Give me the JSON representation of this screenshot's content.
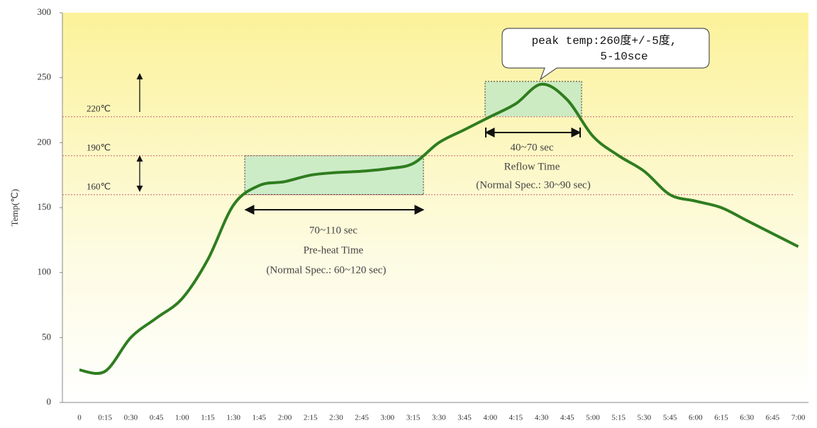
{
  "chart_data": {
    "type": "line",
    "y_label": "Temp(℃)",
    "categories": [
      "0",
      "0:15",
      "0:30",
      "0:45",
      "1:00",
      "1:15",
      "1:30",
      "1:45",
      "2:00",
      "2:15",
      "2:30",
      "2:45",
      "3:00",
      "3:15",
      "3:30",
      "3:45",
      "4:00",
      "4:15",
      "4:30",
      "4:45",
      "5:00",
      "5:15",
      "5:30",
      "5:45",
      "6:00",
      "6:15",
      "6:30",
      "6:45",
      "7:00"
    ],
    "series": [
      {
        "color": "#2f7d1f",
        "values": [
          25,
          24,
          50,
          65,
          80,
          110,
          152,
          167,
          170,
          175,
          177,
          178,
          180,
          184,
          200,
          210,
          220,
          230,
          245,
          233,
          205,
          190,
          178,
          160,
          155,
          150,
          140,
          130,
          120
        ]
      }
    ],
    "ylim": [
      0,
      300
    ],
    "yticks": [
      0,
      50,
      100,
      150,
      200,
      250,
      300
    ],
    "reference_lines": [
      {
        "value": 220,
        "label": "220℃"
      },
      {
        "value": 190,
        "label": "190℃"
      },
      {
        "value": 160,
        "label": "160℃"
      }
    ],
    "annotations": {
      "preheat": [
        "70~110 sec",
        "Pre-heat Time",
        "(Normal  Spec.: 60~120 sec)"
      ],
      "reflow": [
        "40~70 sec",
        "Reflow Time",
        "(Normal Spec.: 30~90 sec)"
      ],
      "peak": [
        "peak temp:260度+/-5度,",
        "5-10sce"
      ]
    }
  }
}
